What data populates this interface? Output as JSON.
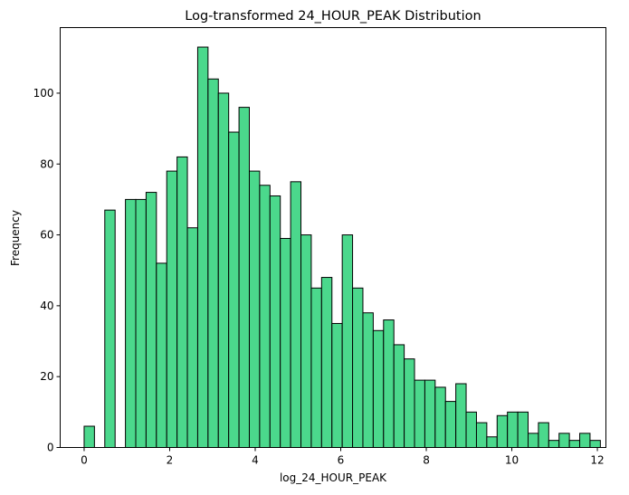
{
  "chart_data": {
    "type": "bar",
    "title": "Log-transformed 24_HOUR_PEAK Distribution",
    "xlabel": "log_24_HOUR_PEAK",
    "ylabel": "Frequency",
    "xlim": [
      -0.56,
      12.2
    ],
    "ylim": [
      0,
      118.5
    ],
    "xticks": [
      0,
      2,
      4,
      6,
      8,
      10,
      12
    ],
    "yticks": [
      0,
      20,
      40,
      60,
      80,
      100
    ],
    "bin_start": 0,
    "bin_width": 0.2414,
    "values": [
      6,
      0,
      67,
      0,
      70,
      70,
      72,
      52,
      78,
      82,
      62,
      113,
      104,
      100,
      89,
      96,
      78,
      74,
      71,
      59,
      75,
      60,
      45,
      48,
      35,
      60,
      45,
      38,
      33,
      36,
      29,
      25,
      19,
      19,
      17,
      13,
      18,
      10,
      7,
      3,
      9,
      10,
      10,
      4,
      7,
      2,
      4,
      2,
      4,
      2
    ],
    "bar_color": "#4bd88c",
    "edge_color": "#000000",
    "grid": false
  }
}
